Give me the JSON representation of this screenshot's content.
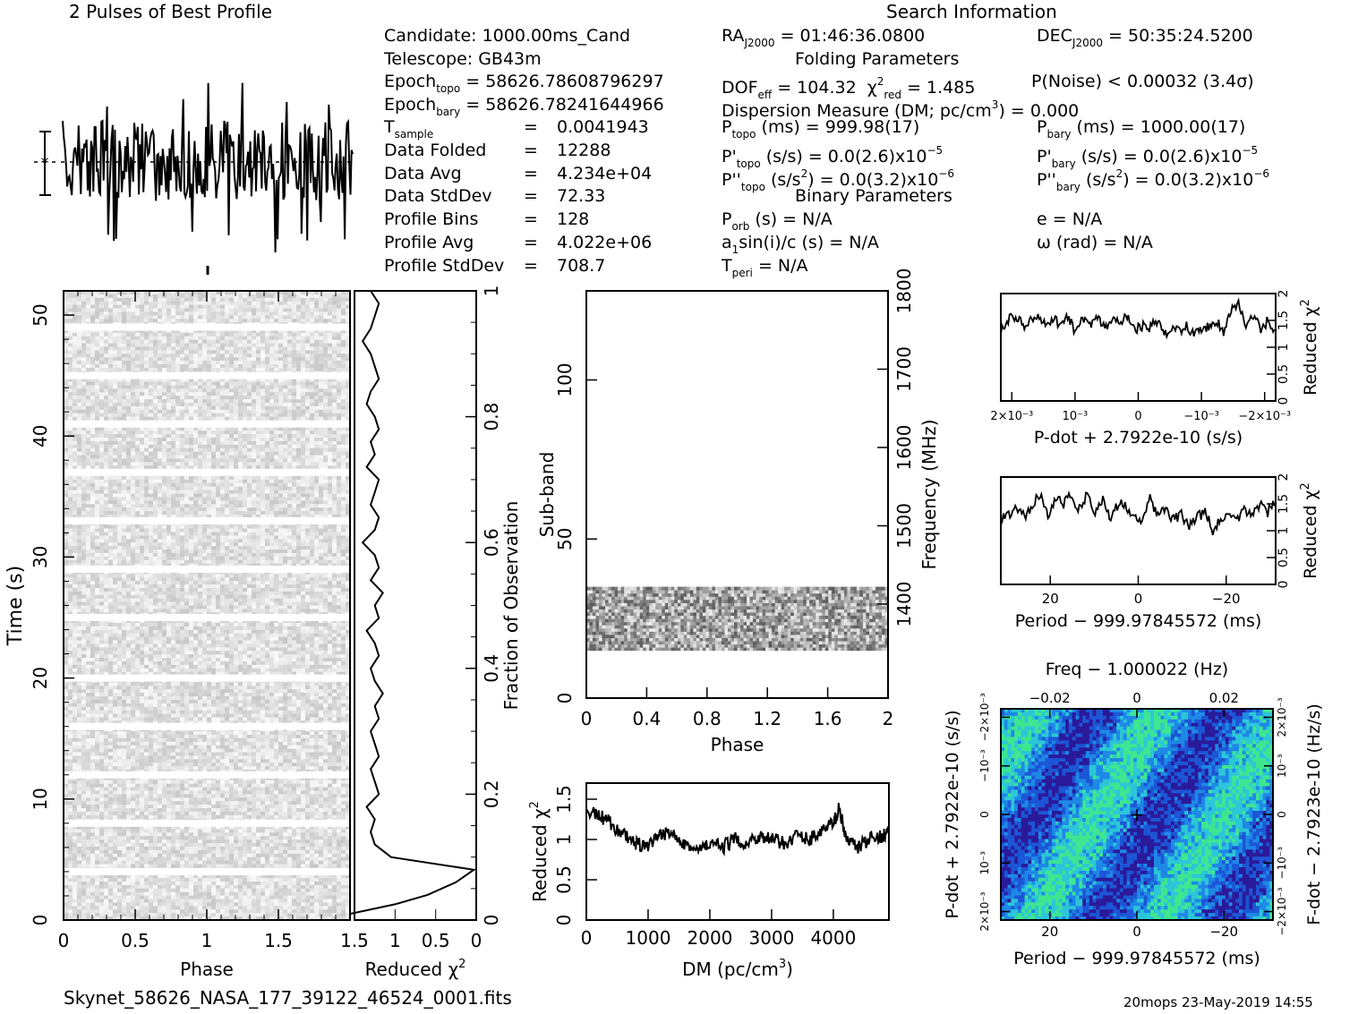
{
  "profile_title": "2 Pulses of Best Profile",
  "search_title": "Search Information",
  "folding_title": "Folding Parameters",
  "binary_title": "Binary Parameters",
  "info_left": {
    "candidate": "Candidate:  1000.00ms_Cand",
    "telescope": "Telescope:  GB43m",
    "epoch_topo": "= 58626.78608796297",
    "epoch_bary": "= 58626.78241644966",
    "t_sample": "0.0041943",
    "data_folded": "12288",
    "data_avg": "4.234e+04",
    "data_stddev": "72.33",
    "profile_bins": "128",
    "profile_avg": "4.022e+06",
    "profile_stddev": "708.7"
  },
  "info_labels": {
    "t_sample": "T",
    "t_sample_sub": "sample",
    "data_folded": "Data Folded",
    "data_avg": "Data Avg",
    "data_stddev": "Data StdDev",
    "profile_bins": "Profile Bins",
    "profile_avg": "Profile Avg",
    "profile_stddev": "Profile StdDev",
    "epoch": "Epoch",
    "topo": "topo",
    "bary": "bary",
    "eq": "="
  },
  "info_search": {
    "ra_value": "= 01:46:36.0800",
    "dec_value": "= 50:35:24.5200",
    "dof_value": "= 104.32",
    "chi_value": "= 1.485",
    "pnoise": "P(Noise) < 0.00032   (3.4σ)",
    "dm_text": "Dispersion Measure (DM; pc/cm",
    "dm_value": ") = 0.000",
    "ptopo_value": "(ms) =   999.98(17)",
    "pbary_value": "(ms) =  1000.00(17)",
    "pdtopo_value": "(s/s) = 0.0(2.6)x10",
    "pdtopo_exp": "−5",
    "pdbary_value": "(s/s) = 0.0(2.6)x10",
    "pdbary_exp": "−5",
    "pddtopo_value": "(s/s",
    "pddtopo_tail": ") = 0.0(3.2)x10",
    "pddtopo_exp": "−6",
    "pddbary_value": "(s/s",
    "pddbary_tail": ") = 0.0(3.2)x10",
    "pddbary_exp": "−6",
    "porb": "(s) = N/A",
    "ecc": "e = N/A",
    "a1": "sin(i)/c (s) = N/A",
    "omega": "ω (rad) = N/A",
    "tperi": "= N/A"
  },
  "footer_file": "Skynet_58626_NASA_177_39122_46524_0001.fits",
  "footer_stamp": "20mops 23-May-2019 14:55",
  "axes": {
    "time_label": "Time (s)",
    "phase_label": "Phase",
    "redchi_label": "Reduced χ",
    "fraction_label": "Fraction of Observation",
    "subband_label": "Sub-band",
    "frequency_label": "Frequency (MHz)",
    "dm_label": "DM (pc/cm",
    "pdot_label": "P-dot + 2.7922e-10 (s/s)",
    "period_label": "Period − 999.97845572 (ms)",
    "freq_label": "Freq − 1.000022 (Hz)",
    "pdot_side_label": "P-dot + 2.7922e-10 (s/s)",
    "fdot_side_label": "F-dot − 2.7923e-10 (Hz/s)"
  },
  "chart_data": [
    {
      "type": "line",
      "name": "profile",
      "x": [
        0,
        2
      ],
      "xlabel": "",
      "ylabel": "",
      "note_values_estimated": "noisy profile, 2 pulses, no clear peak"
    },
    {
      "type": "heatmap",
      "name": "time-phase",
      "xlabel": "Phase",
      "ylabel": "Time (s)",
      "xlim": [
        0,
        2
      ],
      "ylim": [
        0,
        52
      ],
      "x_ticks": [
        "0",
        "0.5",
        "1",
        "1.5"
      ],
      "y_ticks": [
        "0",
        "10",
        "20",
        "30",
        "40",
        "50"
      ],
      "gaps_at_time_s": [
        4,
        8,
        12,
        16,
        20,
        25,
        29,
        33,
        37,
        41,
        45,
        49
      ]
    },
    {
      "type": "line",
      "name": "fraction-chi2",
      "xlabel": "Reduced χ2",
      "ylabel": "Fraction of Observation",
      "xlim": [
        1.5,
        0
      ],
      "ylim": [
        0,
        1
      ],
      "x_ticks": [
        "1.5",
        "1",
        "0.5",
        "0"
      ],
      "y_ticks": [
        "0",
        "0.2",
        "0.4",
        "0.6",
        "0.8",
        "1"
      ],
      "x": [
        1.55,
        1.0,
        0.6,
        0.25,
        0.03,
        1.05,
        1.25,
        1.3,
        1.25,
        1.35,
        1.2,
        1.25,
        1.3,
        1.2,
        1.25,
        1.3,
        1.2,
        1.25,
        1.15,
        1.25,
        1.3,
        1.2,
        1.25,
        1.35,
        1.2,
        1.25,
        1.15,
        1.3,
        1.2,
        1.25,
        1.4,
        1.25,
        1.2,
        1.3,
        1.25,
        1.2,
        1.35,
        1.25,
        1.3,
        1.2,
        1.25,
        1.35,
        1.3,
        1.2,
        1.25,
        1.3,
        1.4,
        1.3,
        1.25,
        1.2,
        1.3
      ],
      "y": [
        0.01,
        0.025,
        0.04,
        0.06,
        0.08,
        0.1,
        0.12,
        0.14,
        0.16,
        0.18,
        0.2,
        0.22,
        0.24,
        0.26,
        0.28,
        0.3,
        0.32,
        0.34,
        0.36,
        0.38,
        0.4,
        0.42,
        0.44,
        0.46,
        0.48,
        0.5,
        0.52,
        0.54,
        0.56,
        0.58,
        0.6,
        0.62,
        0.64,
        0.66,
        0.68,
        0.7,
        0.72,
        0.74,
        0.76,
        0.78,
        0.8,
        0.82,
        0.84,
        0.86,
        0.88,
        0.9,
        0.92,
        0.94,
        0.96,
        0.98,
        1.0
      ]
    },
    {
      "type": "heatmap",
      "name": "subband-phase",
      "xlabel": "Phase",
      "ylabel": "Sub-band",
      "xlim": [
        0,
        2
      ],
      "ylim": [
        0,
        128
      ],
      "x_ticks": [
        "0",
        "0.4",
        "0.8",
        "1.2",
        "1.6",
        "2"
      ],
      "y_ticks": [
        "0",
        "50",
        "100"
      ],
      "y2_ticks": [
        "1400",
        "1500",
        "1600",
        "1700",
        "1800"
      ],
      "active_subbands": [
        15,
        35
      ]
    },
    {
      "type": "line",
      "name": "dm-chi2",
      "xlabel": "DM (pc/cm3)",
      "ylabel": "Reduced χ2",
      "xlim": [
        0,
        4900
      ],
      "ylim": [
        0,
        1.7
      ],
      "x_ticks": [
        "0",
        "1000",
        "2000",
        "3000",
        "4000"
      ],
      "y_ticks": [
        "0",
        "0.5",
        "1",
        "1.5"
      ],
      "x": [
        0,
        200,
        400,
        600,
        800,
        1000,
        1200,
        1400,
        1600,
        1800,
        2000,
        2200,
        2400,
        2600,
        2800,
        3000,
        3200,
        3400,
        3600,
        3800,
        4000,
        4100,
        4200,
        4400,
        4600,
        4800,
        4900
      ],
      "y": [
        1.35,
        1.3,
        1.2,
        1.05,
        0.95,
        0.9,
        1.05,
        1.1,
        0.95,
        0.85,
        0.95,
        0.9,
        1.0,
        0.95,
        1.05,
        1.0,
        0.95,
        1.05,
        1.0,
        1.1,
        1.2,
        1.4,
        1.0,
        0.9,
        1.0,
        1.05,
        1.1
      ]
    },
    {
      "type": "line",
      "name": "pdot-chi2",
      "xlabel": "P-dot + 2.7922e-10 (s/s)",
      "ylabel": "Reduced χ2",
      "ylim": [
        0,
        2
      ],
      "x_ticks": [
        "2×10⁻³",
        "10⁻³",
        "0",
        "−10⁻³",
        "−2×10⁻³"
      ],
      "y_ticks": [
        "0",
        "0.5",
        "1",
        "1.5",
        "2"
      ],
      "y": [
        1.3,
        1.5,
        1.6,
        1.4,
        1.5,
        1.55,
        1.4,
        1.5,
        1.45,
        1.6,
        1.3,
        1.5,
        1.4,
        1.55,
        1.35,
        1.5,
        1.45,
        1.6,
        1.3,
        1.4,
        1.35,
        1.5,
        1.2,
        1.4,
        1.3,
        1.45,
        1.2,
        1.35,
        1.4,
        1.5,
        1.3,
        1.7,
        1.8,
        1.4,
        1.6,
        1.3,
        1.5,
        1.2
      ]
    },
    {
      "type": "line",
      "name": "period-chi2",
      "xlabel": "Period − 999.97845572 (ms)",
      "ylabel": "Reduced χ2",
      "ylim": [
        0,
        2
      ],
      "x_ticks": [
        "20",
        "0",
        "−20"
      ],
      "y_ticks": [
        "0",
        "0.5",
        "1",
        "1.5",
        "2"
      ],
      "y": [
        1.2,
        1.3,
        1.4,
        1.25,
        1.5,
        1.7,
        1.3,
        1.6,
        1.5,
        1.65,
        1.4,
        1.7,
        1.3,
        1.6,
        1.25,
        1.5,
        1.45,
        1.3,
        1.2,
        1.6,
        1.3,
        1.4,
        1.2,
        1.3,
        1.1,
        1.25,
        1.35,
        1.0,
        1.2,
        1.3,
        1.15,
        1.4,
        1.3,
        1.5,
        1.35,
        1.6
      ]
    },
    {
      "type": "heatmap",
      "name": "period-pdot",
      "xlabel": "Period − 999.97845572 (ms)",
      "ylabel": "P-dot + 2.7922e-10 (s/s)",
      "x_ticks": [
        "20",
        "0",
        "−20"
      ],
      "x2_ticks": [
        "−0.02",
        "0",
        "0.02"
      ],
      "y_ticks": [
        "2×10⁻³",
        "10⁻³",
        "0",
        "−10⁻³",
        "−2×10⁻³"
      ],
      "y2_ticks": [
        "−2×10⁻³",
        "−10⁻³",
        "0",
        "10⁻³",
        "2×10⁻³"
      ],
      "colormap": [
        "#2a1a9a",
        "#1c56d6",
        "#1e88e6",
        "#2cc6d8",
        "#3ee690"
      ]
    }
  ]
}
